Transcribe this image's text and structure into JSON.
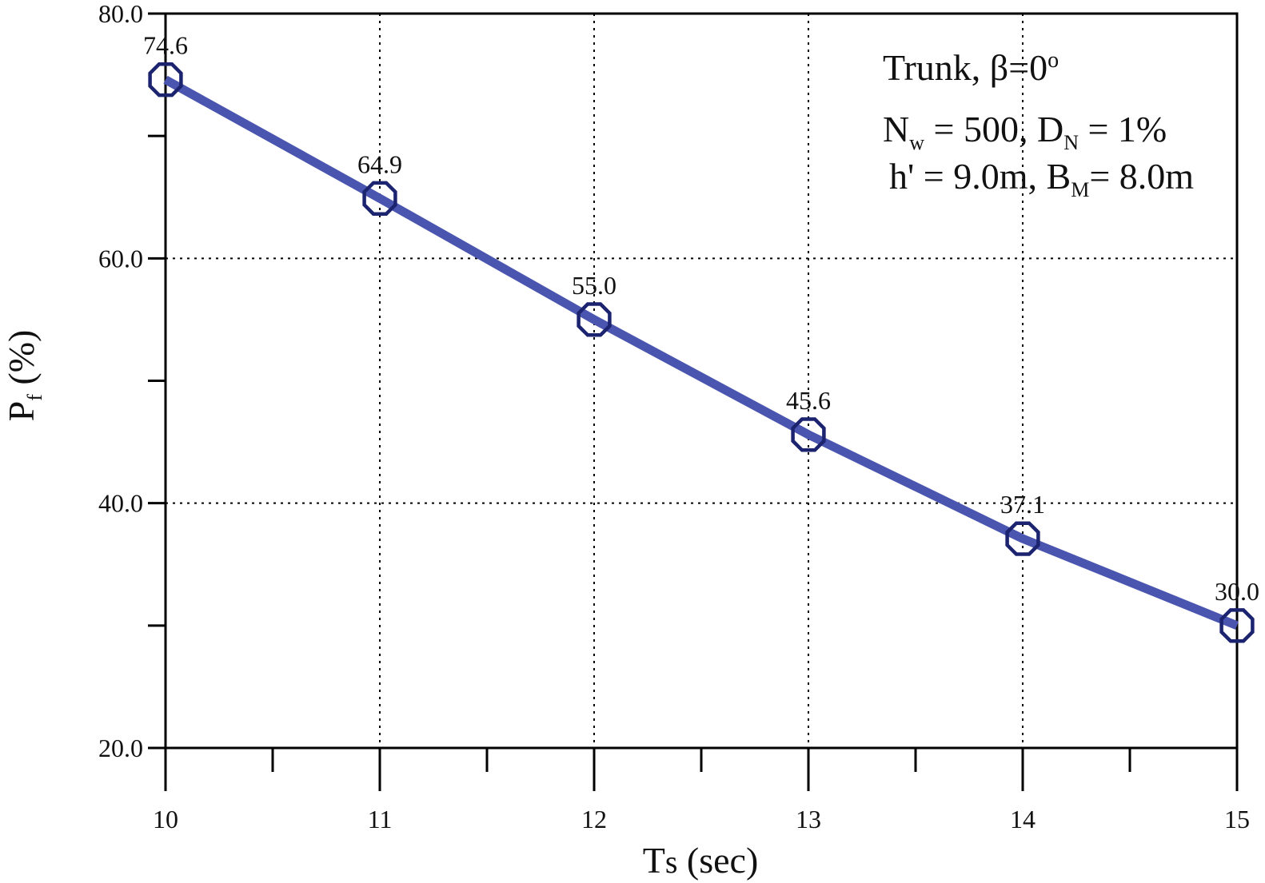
{
  "chart_data": {
    "type": "line",
    "title": "",
    "xlabel": "Ts (sec)",
    "ylabel": "Pf (%)",
    "xlim": [
      10,
      15
    ],
    "ylim": [
      20.0,
      80.0
    ],
    "x_ticks": [
      10,
      11,
      12,
      13,
      14,
      15
    ],
    "x_tick_labels": [
      "10",
      "11",
      "12",
      "13",
      "14",
      "15"
    ],
    "y_ticks": [
      20.0,
      40.0,
      60.0,
      80.0
    ],
    "y_tick_labels": [
      "20.0",
      "40.0",
      "60.0",
      "80.0"
    ],
    "grid": true,
    "series": [
      {
        "x": [
          10,
          11,
          12,
          13,
          14,
          15
        ],
        "values": [
          74.6,
          64.9,
          55.0,
          45.6,
          37.1,
          30.0
        ],
        "labels": [
          "74.6",
          "64.9",
          "55.0",
          "45.6",
          "37.1",
          "30.0"
        ],
        "marker": "octagon",
        "line_color": "#4a55b0",
        "marker_color": "#1c2470"
      }
    ],
    "annotation": {
      "line1": "Trunk, β=0°",
      "line2": "Nw = 500, DN = 1%",
      "line3": "h' = 9.0m, BM = 8.0m"
    }
  }
}
